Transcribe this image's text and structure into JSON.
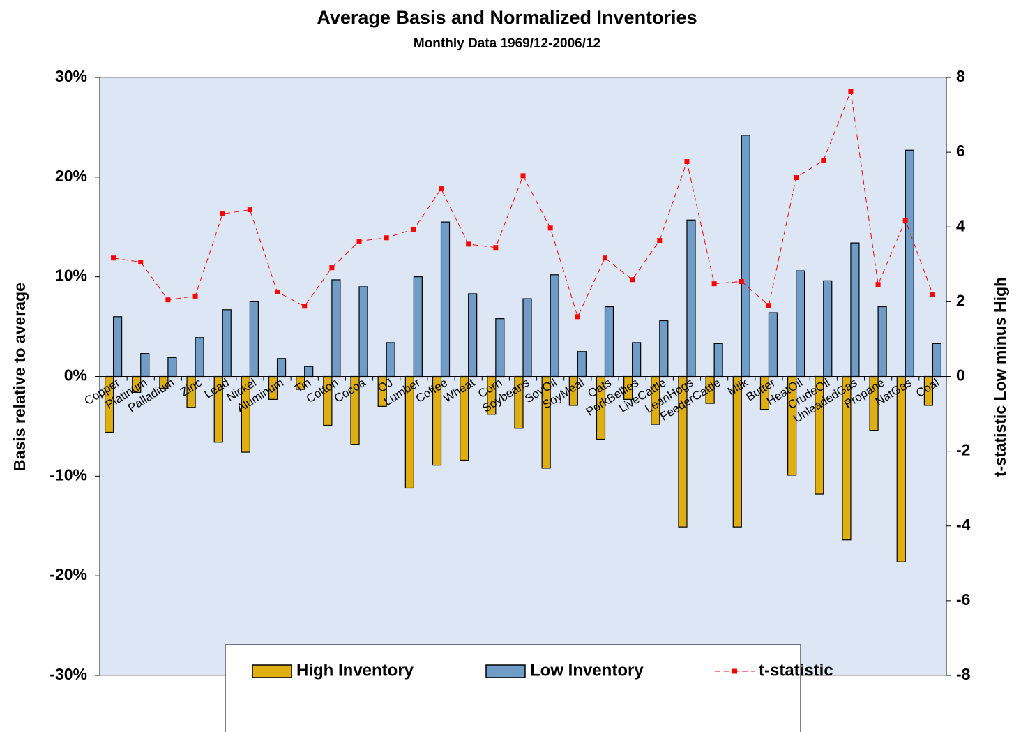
{
  "chart_data": {
    "type": "bar",
    "title": "Average Basis and Normalized Inventories",
    "subtitle": "Monthly Data 1969/12-2006/12",
    "y_label": "Basis relative to average",
    "y2_label": "t-statistic  Low minus High",
    "categories": [
      "Copper",
      "Platinum",
      "Palladium",
      "Zinc",
      "Lead",
      "Nickel",
      "Aluminum",
      "Tin",
      "Cotton",
      "Cocoa",
      "OJ",
      "Lumber",
      "Coffee",
      "Wheat",
      "Corn",
      "Soybeans",
      "SoyOil",
      "SoyMeal",
      "Oats",
      "PorkBellies",
      "LiveCattle",
      "LeanHogs",
      "FeederCattle",
      "Milk",
      "Butter",
      "HeatOil",
      "CrudeOil",
      "UnleadedGas",
      "Propane",
      "NatGas",
      "Coal"
    ],
    "series": [
      {
        "name": "High Inventory",
        "type": "bar",
        "color": "#dfae10",
        "values": [
          -5.6,
          -1.6,
          -1.2,
          -3.1,
          -6.6,
          -7.6,
          -2.3,
          -1.3,
          -4.9,
          -6.8,
          -3.0,
          -11.2,
          -8.9,
          -8.4,
          -3.8,
          -5.2,
          -9.2,
          -2.9,
          -6.3,
          -2.3,
          -4.8,
          -15.1,
          -2.7,
          -15.1,
          -3.3,
          -9.9,
          -11.8,
          -16.4,
          -5.4,
          -18.6,
          -2.9
        ]
      },
      {
        "name": "Low Inventory",
        "type": "bar",
        "color": "#6f9dc8",
        "values": [
          6.0,
          2.3,
          1.9,
          3.9,
          6.7,
          7.5,
          1.8,
          1.0,
          9.7,
          9.0,
          3.4,
          10.0,
          15.5,
          8.3,
          5.8,
          7.8,
          10.2,
          2.5,
          7.0,
          3.4,
          5.6,
          15.7,
          3.3,
          24.2,
          6.4,
          10.6,
          9.6,
          13.4,
          7.0,
          22.7,
          3.3
        ]
      },
      {
        "name": "t-statistic",
        "type": "line",
        "axis": "y2",
        "color": "#ff0000",
        "values": [
          3.17,
          3.06,
          2.05,
          2.15,
          4.35,
          4.46,
          2.26,
          1.88,
          2.91,
          3.62,
          3.71,
          3.94,
          5.02,
          3.54,
          3.45,
          5.37,
          3.97,
          1.6,
          3.17,
          2.59,
          3.64,
          5.75,
          2.48,
          2.54,
          1.9,
          5.32,
          5.78,
          7.63,
          2.46,
          4.18,
          2.2
        ]
      }
    ],
    "ylim": [
      -30,
      30
    ],
    "yticks": [
      {
        "value": -30,
        "label": "-30%"
      },
      {
        "value": -20,
        "label": "-20%"
      },
      {
        "value": -10,
        "label": "-10%"
      },
      {
        "value": 0,
        "label": "0%"
      },
      {
        "value": 10,
        "label": "10%"
      },
      {
        "value": 20,
        "label": "20%"
      },
      {
        "value": 30,
        "label": "30%"
      }
    ],
    "y2lim": [
      -8,
      8
    ],
    "y2ticks": [
      -8,
      -6,
      -4,
      -2,
      0,
      2,
      4,
      6,
      8
    ],
    "grid": false,
    "legend": "bottom"
  }
}
